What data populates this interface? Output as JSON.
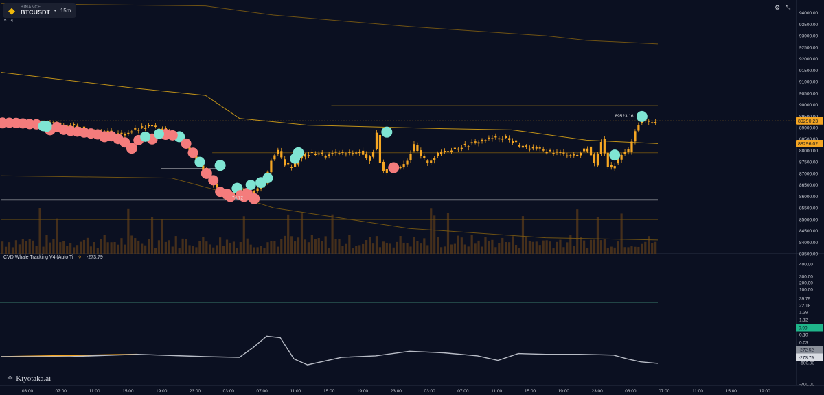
{
  "header": {
    "exchange": "BINANCE",
    "symbol": "BTCUSDT",
    "interval": "15m",
    "collapse_count": "4"
  },
  "indicator": {
    "name": "CVD Whale Tracking V4 (Auto Ti",
    "value": "-273.79"
  },
  "brand": {
    "name": "Kiyotaka.ai"
  },
  "icons": [
    "binance-logo-icon",
    "collapse-caret-icon",
    "settings-icon",
    "fullscreen-icon",
    "kiyotaka-logo-icon"
  ],
  "colors": {
    "background": "#0b1021",
    "candle": "#f5a623",
    "bubble_buy": "#7fe5d3",
    "bubble_sell": "#f47c7c",
    "level_line": "#d4a017",
    "white_line": "#e6e6e6",
    "volume": "#5a3a1a",
    "cvd_line": "#b8bcc6",
    "cvd_orange": "#f5a623",
    "cvd_teal_line": "#3a7a6a"
  },
  "chart_data": {
    "type": "line",
    "price_axis": {
      "ticks": [
        "94000.00",
        "93500.00",
        "93000.00",
        "92500.00",
        "92000.00",
        "91500.00",
        "91000.00",
        "90500.00",
        "90000.00",
        "89500.00",
        "89000.00",
        "88500.00",
        "88000.00",
        "87500.00",
        "87000.00",
        "86500.00",
        "86000.00",
        "85500.00",
        "85000.00",
        "84500.00",
        "84000.00",
        "83500.00"
      ],
      "ylim": [
        83500,
        94200
      ]
    },
    "price_labels": {
      "last_price": "89290.23",
      "level_price": "88296.02",
      "high_label": "89523.16",
      "low_label": "74.72"
    },
    "cvd_axis": {
      "ticks": [
        "400.00",
        "300.00",
        "200.00",
        "100.00",
        "39.79",
        "22.18",
        "1.29",
        "1.12",
        "0.99",
        "0.10",
        "0.03",
        "-272.52",
        "-273.79",
        "-600.00",
        "-700.00"
      ]
    },
    "time_axis": {
      "ticks": [
        "03:00",
        "07:00",
        "11:00",
        "15:00",
        "19:00",
        "23:00",
        "03:00",
        "07:00",
        "11:00",
        "15:00",
        "19:00",
        "23:00",
        "03:00",
        "07:00",
        "11:00",
        "15:00",
        "19:00",
        "23:00",
        "03:00",
        "07:00",
        "11:00",
        "15:00",
        "19:00"
      ]
    },
    "price_series": [
      [
        0,
        89250
      ],
      [
        4,
        89200
      ],
      [
        8,
        89220
      ],
      [
        12,
        89150
      ],
      [
        16,
        89180
      ],
      [
        20,
        89100
      ],
      [
        24,
        89000
      ],
      [
        28,
        88900
      ],
      [
        32,
        88800
      ],
      [
        36,
        88700
      ],
      [
        40,
        88900
      ],
      [
        44,
        89050
      ],
      [
        48,
        89000
      ],
      [
        52,
        88600
      ],
      [
        56,
        88000
      ],
      [
        60,
        87200
      ],
      [
        63,
        86500
      ],
      [
        65,
        86200
      ],
      [
        67,
        86000
      ],
      [
        69,
        86100
      ],
      [
        71,
        86300
      ],
      [
        73,
        85950
      ],
      [
        75,
        86200
      ],
      [
        78,
        86600
      ],
      [
        80,
        87600
      ],
      [
        82,
        87950
      ],
      [
        84,
        87400
      ],
      [
        86,
        87300
      ],
      [
        88,
        87600
      ],
      [
        90,
        87800
      ],
      [
        93,
        87900
      ],
      [
        96,
        87750
      ],
      [
        99,
        87900
      ],
      [
        102,
        87850
      ],
      [
        106,
        87950
      ],
      [
        108,
        87600
      ],
      [
        110,
        88000
      ],
      [
        111,
        88700
      ],
      [
        112,
        87500
      ],
      [
        113,
        87100
      ],
      [
        115,
        87400
      ],
      [
        118,
        87300
      ],
      [
        120,
        87600
      ],
      [
        122,
        88200
      ],
      [
        124,
        87700
      ],
      [
        126,
        87500
      ],
      [
        128,
        87700
      ],
      [
        130,
        87950
      ],
      [
        134,
        88100
      ],
      [
        138,
        88250
      ],
      [
        142,
        88450
      ],
      [
        146,
        88550
      ],
      [
        148,
        88600
      ],
      [
        150,
        88450
      ],
      [
        152,
        88300
      ],
      [
        154,
        88150
      ],
      [
        158,
        88050
      ],
      [
        162,
        87950
      ],
      [
        166,
        87850
      ],
      [
        170,
        87800
      ],
      [
        173,
        88150
      ],
      [
        175,
        87400
      ],
      [
        177,
        88450
      ],
      [
        179,
        87200
      ],
      [
        181,
        87400
      ],
      [
        183,
        87800
      ],
      [
        185,
        88000
      ],
      [
        187,
        88900
      ],
      [
        189,
        89350
      ],
      [
        191,
        89250
      ],
      [
        193,
        89290
      ]
    ],
    "bubbles_buy": [
      [
        13,
        89050
      ],
      [
        52,
        88600
      ],
      [
        64,
        87350
      ],
      [
        69,
        86350
      ],
      [
        76,
        86600
      ],
      [
        87,
        87900
      ],
      [
        113,
        88800
      ],
      [
        180,
        87800
      ],
      [
        188,
        89480
      ]
    ],
    "bubbles_sell": [
      [
        0,
        89200
      ],
      [
        14,
        88900
      ],
      [
        30,
        88600
      ],
      [
        38,
        88100
      ],
      [
        44,
        88500
      ],
      [
        48,
        88700
      ],
      [
        60,
        87000
      ],
      [
        66,
        86100
      ],
      [
        71,
        86000
      ],
      [
        74,
        85900
      ],
      [
        115,
        87250
      ]
    ],
    "cvd_series": [
      [
        0,
        -273
      ],
      [
        20,
        -273
      ],
      [
        40,
        -276
      ],
      [
        60,
        -273
      ],
      [
        70,
        -272
      ],
      [
        74,
        -285
      ],
      [
        78,
        -300
      ],
      [
        82,
        -298
      ],
      [
        86,
        -270
      ],
      [
        90,
        -262
      ],
      [
        100,
        -272
      ],
      [
        110,
        -274
      ],
      [
        120,
        -280
      ],
      [
        130,
        -278
      ],
      [
        140,
        -274
      ],
      [
        146,
        -268
      ],
      [
        152,
        -277
      ],
      [
        160,
        -276
      ],
      [
        170,
        -276
      ],
      [
        180,
        -275
      ],
      [
        184,
        -270
      ],
      [
        188,
        -266
      ],
      [
        193,
        -264
      ]
    ]
  }
}
